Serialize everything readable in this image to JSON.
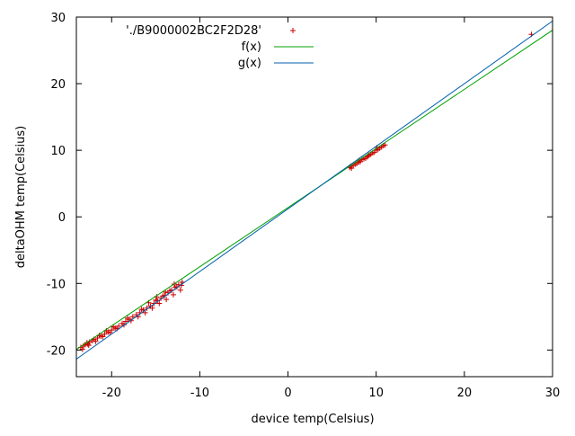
{
  "chart_data": {
    "type": "scatter",
    "title": "",
    "xlabel": "device temp(Celsius)",
    "ylabel": "deltaOHM temp(Celsius)",
    "xlim": [
      -24,
      30
    ],
    "ylim": [
      -24,
      30
    ],
    "xticks": [
      -20,
      -10,
      0,
      10,
      20,
      30
    ],
    "yticks": [
      -20,
      -10,
      0,
      10,
      20,
      30
    ],
    "grid": false,
    "legend_position": "top-center",
    "series": [
      {
        "name": "'./B9000002BC2F2D28'",
        "kind": "points",
        "marker": "+",
        "color": "#cc0000",
        "points": [
          [
            -23.5,
            -19.6
          ],
          [
            -23.2,
            -19.4
          ],
          [
            -23.0,
            -19.2
          ],
          [
            -22.7,
            -19.1
          ],
          [
            -22.5,
            -18.8
          ],
          [
            -22.2,
            -18.6
          ],
          [
            -22.0,
            -18.4
          ],
          [
            -21.6,
            -18.2
          ],
          [
            -21.2,
            -17.9
          ],
          [
            -20.8,
            -17.6
          ],
          [
            -20.4,
            -17.3
          ],
          [
            -20.0,
            -17.0
          ],
          [
            -19.6,
            -16.7
          ],
          [
            -19.2,
            -16.4
          ],
          [
            -18.8,
            -16.0
          ],
          [
            -18.4,
            -15.7
          ],
          [
            -18.0,
            -15.4
          ],
          [
            -17.6,
            -15.0
          ],
          [
            -17.2,
            -14.7
          ],
          [
            -16.8,
            -14.4
          ],
          [
            -16.4,
            -14.0
          ],
          [
            -16.0,
            -13.7
          ],
          [
            -15.6,
            -13.4
          ],
          [
            -15.2,
            -13.0
          ],
          [
            -14.8,
            -12.6
          ],
          [
            -14.4,
            -12.2
          ],
          [
            -14.0,
            -11.8
          ],
          [
            -13.6,
            -11.4
          ],
          [
            -13.2,
            -11.0
          ],
          [
            -12.8,
            -10.6
          ],
          [
            -12.4,
            -10.2
          ],
          [
            -12.0,
            -9.8
          ],
          [
            -23.3,
            -19.9
          ],
          [
            -22.6,
            -19.3
          ],
          [
            -21.8,
            -18.7
          ],
          [
            -21.0,
            -18.0
          ],
          [
            -20.2,
            -17.4
          ],
          [
            -19.4,
            -16.8
          ],
          [
            -18.6,
            -16.2
          ],
          [
            -17.8,
            -15.6
          ],
          [
            -17.0,
            -15.0
          ],
          [
            -16.2,
            -14.4
          ],
          [
            -15.4,
            -13.7
          ],
          [
            -14.6,
            -13.0
          ],
          [
            -13.8,
            -12.4
          ],
          [
            -13.0,
            -11.7
          ],
          [
            -12.2,
            -11.0
          ],
          [
            -22.8,
            -18.9
          ],
          [
            -21.4,
            -17.8
          ],
          [
            -20.6,
            -17.1
          ],
          [
            -19.8,
            -16.5
          ],
          [
            -18.2,
            -15.2
          ],
          [
            -16.6,
            -13.9
          ],
          [
            -15.0,
            -12.5
          ],
          [
            -14.2,
            -11.9
          ],
          [
            -13.4,
            -11.1
          ],
          [
            -12.6,
            -10.5
          ],
          [
            -12.1,
            -10.3
          ],
          [
            -15.8,
            -12.9
          ],
          [
            -14.9,
            -12.0
          ],
          [
            -13.9,
            -11.3
          ],
          [
            -12.9,
            -10.1
          ],
          [
            7.0,
            7.4
          ],
          [
            7.4,
            7.7
          ],
          [
            7.8,
            8.0
          ],
          [
            8.2,
            8.3
          ],
          [
            8.6,
            8.7
          ],
          [
            9.0,
            9.0
          ],
          [
            9.4,
            9.4
          ],
          [
            9.8,
            9.7
          ],
          [
            10.2,
            10.1
          ],
          [
            10.6,
            10.5
          ],
          [
            11.0,
            10.8
          ],
          [
            7.2,
            7.3
          ],
          [
            7.6,
            7.9
          ],
          [
            8.0,
            8.2
          ],
          [
            8.4,
            8.6
          ],
          [
            8.8,
            8.8
          ],
          [
            9.2,
            9.3
          ],
          [
            9.6,
            9.6
          ],
          [
            10.0,
            10.0
          ],
          [
            10.4,
            10.3
          ],
          [
            10.8,
            10.7
          ],
          [
            7.1,
            7.6
          ],
          [
            8.1,
            8.5
          ],
          [
            9.1,
            9.2
          ],
          [
            10.1,
            10.4
          ],
          [
            27.6,
            27.4
          ]
        ]
      },
      {
        "name": "f(x)",
        "kind": "line",
        "color": "#00a000",
        "slope": 0.888,
        "intercept": 1.39
      },
      {
        "name": "g(x)",
        "kind": "line",
        "color": "#0060ad",
        "slope": 0.94,
        "intercept": 1.2
      }
    ]
  }
}
